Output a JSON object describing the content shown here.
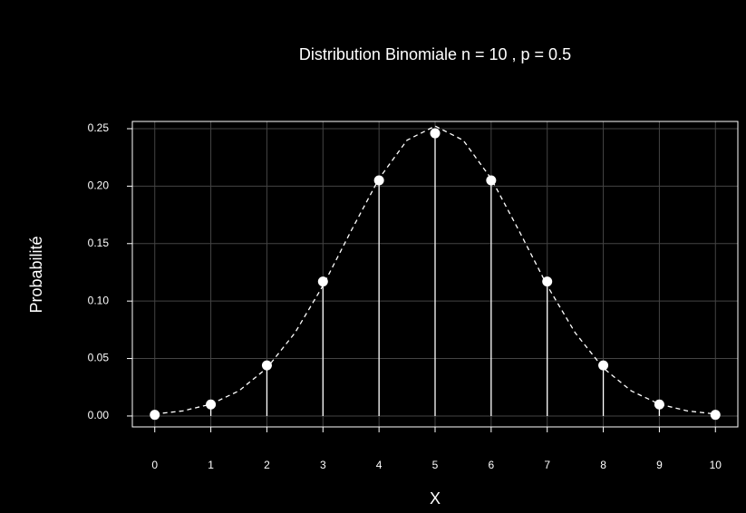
{
  "chart_data": {
    "type": "stem",
    "title": "Distribution Binomiale n = 10 , p = 0.5",
    "x_label": "X",
    "y_label": "Probabilité",
    "x": [
      0,
      1,
      2,
      3,
      4,
      5,
      6,
      7,
      8,
      9,
      10
    ],
    "values": [
      0.001,
      0.01,
      0.044,
      0.117,
      0.205,
      0.246,
      0.205,
      0.117,
      0.044,
      0.01,
      0.001
    ],
    "color": "#ffffff",
    "curve": {
      "x": [
        0,
        0.5,
        1,
        1.5,
        2,
        2.5,
        3,
        3.5,
        4,
        4.5,
        5,
        5.5,
        6,
        6.5,
        7,
        7.5,
        8,
        8.5,
        9,
        9.5,
        10
      ],
      "values": [
        0.0017,
        0.0044,
        0.0103,
        0.0218,
        0.0417,
        0.0723,
        0.1134,
        0.1609,
        0.2066,
        0.24,
        0.2523,
        0.24,
        0.2066,
        0.1609,
        0.1134,
        0.0723,
        0.0417,
        0.0218,
        0.0103,
        0.0044,
        0.0017
      ],
      "color": "#ffffff",
      "dashed": true
    },
    "xlim": [
      -0.4,
      10.4
    ],
    "ylim": [
      -0.0095,
      0.2563
    ],
    "xticks": [
      0,
      1,
      2,
      3,
      4,
      5,
      6,
      7,
      8,
      9,
      10
    ],
    "yticks": [
      {
        "value": 0,
        "label": "0.00"
      },
      {
        "value": 0.05,
        "label": "0.05"
      },
      {
        "value": 0.1,
        "label": "0.10"
      },
      {
        "value": 0.15,
        "label": "0.15"
      },
      {
        "value": 0.2,
        "label": "0.20"
      },
      {
        "value": 0.25,
        "label": "0.25"
      }
    ],
    "grid": true
  }
}
